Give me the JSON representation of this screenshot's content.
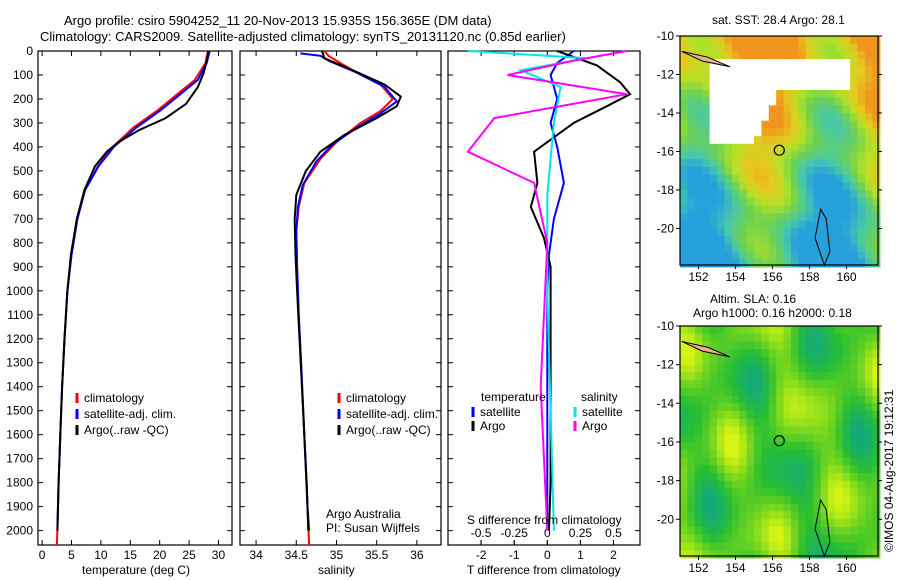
{
  "title_line1": "Argo profile: csiro 5904252_11 20-Nov-2013 15.935S 156.365E (DM data)",
  "title_line2": "Climatology: CARS2009. Satellite-adjusted climatology: synTS_20131120.nc (0.85d earlier)",
  "chart_data": [
    {
      "type": "line",
      "id": "temperature",
      "xlabel": "temperature (deg C)",
      "ylabel": "",
      "xlim": [
        -0.7,
        32.3
      ],
      "ylim": [
        2060,
        0
      ],
      "xticks": [
        0,
        5,
        10,
        15,
        20,
        25,
        30
      ],
      "yticks": [
        0,
        100,
        200,
        300,
        400,
        500,
        600,
        700,
        800,
        900,
        1000,
        1100,
        1200,
        1300,
        1400,
        1500,
        1600,
        1700,
        1800,
        1900,
        2000
      ],
      "legend": [
        "climatology",
        "satellite-adj. clim.",
        "Argo(..raw -QC)"
      ],
      "series": [
        {
          "name": "climatology",
          "color": "#ff0000",
          "points": [
            [
              28.2,
              0
            ],
            [
              27.8,
              50
            ],
            [
              26,
              120
            ],
            [
              23,
              180
            ],
            [
              19.5,
              250
            ],
            [
              15.5,
              320
            ],
            [
              12,
              400
            ],
            [
              9.5,
              480
            ],
            [
              7.3,
              580
            ],
            [
              6,
              700
            ],
            [
              5,
              850
            ],
            [
              4.3,
              1000
            ],
            [
              3.8,
              1200
            ],
            [
              3.4,
              1400
            ],
            [
              3.1,
              1600
            ],
            [
              2.8,
              1800
            ],
            [
              2.6,
              2000
            ],
            [
              2.5,
              2060
            ]
          ]
        },
        {
          "name": "satellite-adj. clim.",
          "color": "#0000ff",
          "points": [
            [
              28.5,
              0
            ],
            [
              28,
              50
            ],
            [
              26.5,
              120
            ],
            [
              23.5,
              180
            ],
            [
              20,
              250
            ],
            [
              16,
              320
            ],
            [
              12.2,
              400
            ],
            [
              9.6,
              480
            ],
            [
              7.3,
              580
            ],
            [
              6,
              700
            ],
            [
              5,
              850
            ],
            [
              4.3,
              1000
            ],
            [
              3.8,
              1200
            ],
            [
              3.4,
              1400
            ],
            [
              3.1,
              1600
            ],
            [
              2.8,
              1800
            ],
            [
              2.6,
              2000
            ]
          ]
        },
        {
          "name": "Argo(..raw -QC)",
          "color": "#000000",
          "points": [
            [
              28.3,
              0
            ],
            [
              28,
              40
            ],
            [
              27.5,
              90
            ],
            [
              26.5,
              150
            ],
            [
              24.5,
              220
            ],
            [
              21,
              280
            ],
            [
              16.5,
              330
            ],
            [
              13,
              380
            ],
            [
              11,
              420
            ],
            [
              9,
              480
            ],
            [
              7.2,
              580
            ],
            [
              5.9,
              700
            ],
            [
              4.9,
              850
            ],
            [
              4.3,
              1000
            ],
            [
              3.8,
              1200
            ],
            [
              3.4,
              1400
            ],
            [
              3.1,
              1600
            ],
            [
              2.8,
              1800
            ],
            [
              2.6,
              2000
            ]
          ]
        }
      ]
    },
    {
      "type": "line",
      "id": "salinity",
      "xlabel": "salinity",
      "xlim": [
        33.8,
        36.3
      ],
      "ylim": [
        2060,
        0
      ],
      "xticks": [
        34,
        34.5,
        35,
        35.5,
        36
      ],
      "legend": [
        "climatology",
        "satellite-adj. clim.",
        "Argo(..raw -QC)"
      ],
      "annotation": [
        "Argo Australia",
        "PI: Susan Wijffels"
      ],
      "series": [
        {
          "name": "climatology",
          "color": "#ff0000",
          "points": [
            [
              34.85,
              0
            ],
            [
              34.9,
              20
            ],
            [
              35.2,
              80
            ],
            [
              35.55,
              140
            ],
            [
              35.7,
              200
            ],
            [
              35.55,
              250
            ],
            [
              35.3,
              300
            ],
            [
              35.0,
              380
            ],
            [
              34.8,
              450
            ],
            [
              34.6,
              550
            ],
            [
              34.53,
              650
            ],
            [
              34.5,
              750
            ],
            [
              34.51,
              900
            ],
            [
              34.53,
              1100
            ],
            [
              34.56,
              1300
            ],
            [
              34.6,
              1600
            ],
            [
              34.64,
              1900
            ],
            [
              34.66,
              2060
            ]
          ]
        },
        {
          "name": "satellite-adj. clim.",
          "color": "#0000ff",
          "points": [
            [
              34.55,
              10
            ],
            [
              34.8,
              20
            ],
            [
              34.9,
              40
            ],
            [
              35.25,
              90
            ],
            [
              35.6,
              150
            ],
            [
              35.75,
              210
            ],
            [
              35.55,
              260
            ],
            [
              35.25,
              320
            ],
            [
              34.95,
              390
            ],
            [
              34.75,
              460
            ],
            [
              34.58,
              560
            ],
            [
              34.52,
              650
            ],
            [
              34.5,
              750
            ],
            [
              34.51,
              900
            ],
            [
              34.53,
              1100
            ],
            [
              34.56,
              1300
            ],
            [
              34.6,
              1600
            ],
            [
              34.64,
              1900
            ],
            [
              34.66,
              2000
            ]
          ]
        },
        {
          "name": "Argo(..raw -QC)",
          "color": "#000000",
          "points": [
            [
              34.82,
              0
            ],
            [
              34.85,
              30
            ],
            [
              35.2,
              80
            ],
            [
              35.6,
              140
            ],
            [
              35.8,
              190
            ],
            [
              35.75,
              230
            ],
            [
              35.5,
              280
            ],
            [
              35.1,
              350
            ],
            [
              34.8,
              420
            ],
            [
              34.62,
              500
            ],
            [
              34.5,
              600
            ],
            [
              34.48,
              700
            ],
            [
              34.49,
              850
            ],
            [
              34.51,
              1000
            ],
            [
              34.54,
              1200
            ],
            [
              34.57,
              1400
            ],
            [
              34.6,
              1600
            ],
            [
              34.63,
              1800
            ],
            [
              34.65,
              2000
            ]
          ]
        }
      ]
    },
    {
      "type": "line",
      "id": "differences",
      "xlabel": "T difference from climatology",
      "xlabel2": "S difference from climatology",
      "xlim": [
        -3.0,
        2.8
      ],
      "ylim": [
        2060,
        0
      ],
      "xticks": [
        -2,
        -1,
        0,
        1,
        2
      ],
      "xticks2": [
        "-0.5",
        "-0.25",
        "0",
        "0.25",
        "0.5"
      ],
      "legend_left_title": "temperature",
      "legend_right_title": "salinity",
      "legend": [
        "satellite",
        "Argo",
        "satellite",
        "Argo"
      ],
      "series": [
        {
          "name": "temperature satellite",
          "color": "#0000ff",
          "points": [
            [
              0.8,
              0
            ],
            [
              0.3,
              50
            ],
            [
              0.1,
              100
            ],
            [
              0.3,
              200
            ],
            [
              0.1,
              300
            ],
            [
              0.3,
              400
            ],
            [
              0.5,
              550
            ],
            [
              0.2,
              700
            ],
            [
              0.05,
              850
            ],
            [
              0,
              1000
            ],
            [
              0,
              2000
            ]
          ]
        },
        {
          "name": "temperature Argo",
          "color": "#000000",
          "points": [
            [
              0.3,
              0
            ],
            [
              1.5,
              60
            ],
            [
              2.2,
              130
            ],
            [
              2.5,
              180
            ],
            [
              1.8,
              230
            ],
            [
              0.8,
              300
            ],
            [
              0.2,
              360
            ],
            [
              -0.4,
              420
            ],
            [
              -0.3,
              550
            ],
            [
              -0.5,
              650
            ],
            [
              -0.1,
              780
            ],
            [
              0.1,
              900
            ],
            [
              0.1,
              1200
            ],
            [
              0.1,
              1500
            ],
            [
              0.1,
              1800
            ],
            [
              0.05,
              2000
            ]
          ]
        },
        {
          "name": "salinity satellite",
          "color": "#00e5e5",
          "points": [
            [
              -0.6,
              0
            ],
            [
              0.3,
              30
            ],
            [
              -0.2,
              80
            ],
            [
              0.1,
              150
            ],
            [
              0.05,
              300
            ],
            [
              0,
              600
            ],
            [
              0,
              1000
            ],
            [
              0.05,
              2000
            ]
          ]
        },
        {
          "name": "salinity Argo",
          "color": "#ff00ff",
          "points": [
            [
              0.6,
              0
            ],
            [
              0.2,
              40
            ],
            [
              -0.3,
              100
            ],
            [
              0.6,
              180
            ],
            [
              -0.4,
              280
            ],
            [
              -0.6,
              420
            ],
            [
              -0.1,
              550
            ],
            [
              0,
              800
            ],
            [
              -0.05,
              1400
            ],
            [
              0,
              2000
            ]
          ]
        }
      ]
    }
  ],
  "maps": [
    {
      "id": "sst",
      "title": "sat. SST: 28.4  Argo: 28.1",
      "lon_ticks": [
        "152",
        "154",
        "156",
        "158",
        "160"
      ],
      "lat_ticks": [
        "-10",
        "-12",
        "-14",
        "-16",
        "-18",
        "-20"
      ],
      "argo_lon": 156.365,
      "argo_lat": -15.935
    },
    {
      "id": "sla",
      "title1": "Altim. SLA: 0.16",
      "title2": "Argo h1000: 0.16 h2000: 0.18",
      "lon_ticks": [
        "152",
        "154",
        "156",
        "158",
        "160"
      ],
      "lat_ticks": [
        "-10",
        "-12",
        "-14",
        "-16",
        "-18",
        "-20"
      ],
      "argo_lon": 156.365,
      "argo_lat": -15.935
    }
  ],
  "credit": "©IMOS 04-Aug-2017 19:12:31"
}
